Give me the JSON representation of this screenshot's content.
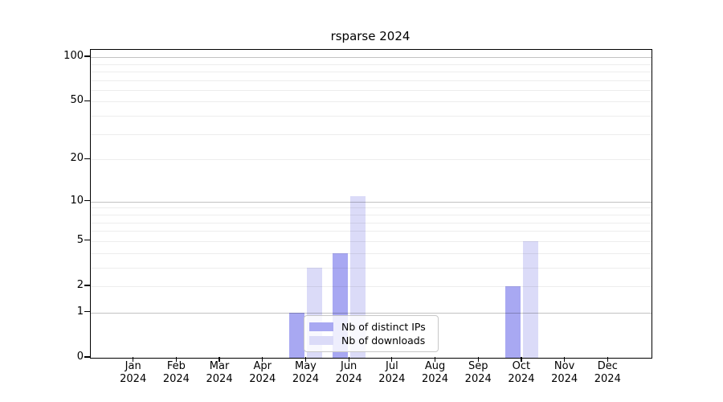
{
  "chart_data": {
    "type": "bar",
    "title": "rsparse 2024",
    "scale": "log1p",
    "categories": [
      "Jan",
      "Feb",
      "Mar",
      "Apr",
      "May",
      "Jun",
      "Jul",
      "Aug",
      "Sep",
      "Oct",
      "Nov",
      "Dec"
    ],
    "year_label": "2024",
    "series": [
      {
        "name": "Nb of distinct IPs",
        "color": "#a8a8f2",
        "values": [
          0,
          0,
          0,
          0,
          1,
          4,
          0,
          0,
          0,
          2,
          0,
          0
        ]
      },
      {
        "name": "Nb of downloads",
        "color": "#dbdbf8",
        "values": [
          0,
          0,
          0,
          0,
          3,
          11,
          0,
          0,
          0,
          5,
          0,
          0
        ]
      }
    ],
    "ylabel": "",
    "xlabel": "",
    "yticks": [
      0,
      1,
      2,
      5,
      10,
      20,
      50,
      100
    ],
    "major_gridlines": [
      1,
      10,
      100
    ],
    "minor_gridlines": [
      2,
      3,
      4,
      5,
      6,
      7,
      8,
      9,
      20,
      30,
      40,
      50,
      60,
      70,
      80,
      90
    ],
    "ylim": [
      0,
      112
    ],
    "grid": true,
    "legend_position": "lower center",
    "legend": {
      "items": [
        {
          "label": "Nb of distinct IPs",
          "color": "#a8a8f2"
        },
        {
          "label": "Nb of downloads",
          "color": "#dbdbf8"
        }
      ]
    }
  }
}
